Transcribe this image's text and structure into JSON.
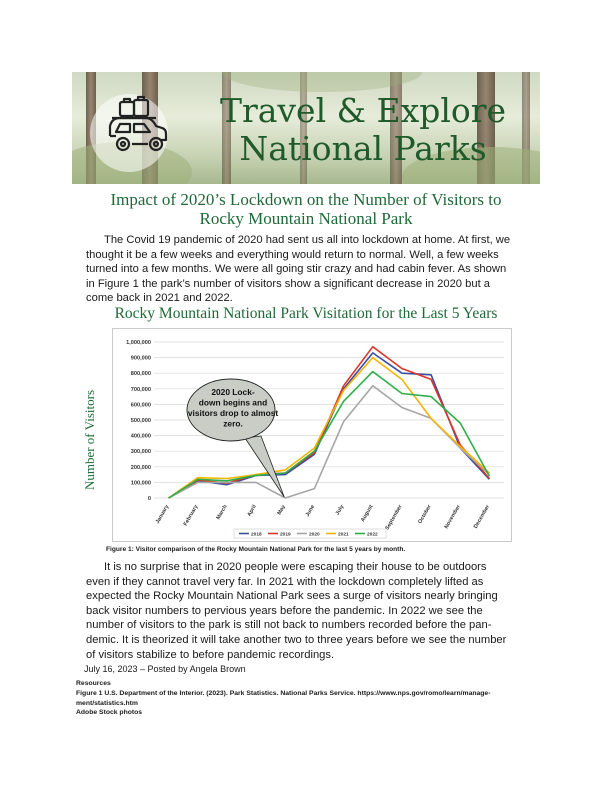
{
  "banner": {
    "title_line1": "Travel & Explore",
    "title_line2": "National Parks"
  },
  "article": {
    "title_line1": "Impact of 2020’s Lockdown on the Number of Visitors to",
    "title_line2": "Rocky Mountain National Park",
    "para1_lines": [
      "The Covid 19 pandemic of 2020 had sent us all into lockdown at home. At first, we",
      "thought it be a few weeks and everything would return to normal.  Well, a few weeks",
      "turned into a few months. We were all going stir crazy and had cabin fever. As shown",
      "in Figure 1 the park’s number of visitors show a significant decrease in 2020 but a",
      "come back in 2021 and 2022."
    ],
    "para2_lines": [
      "It is no surprise that in 2020 people were escaping their house to be outdoors",
      "even if they cannot travel very far. In 2021 with the lockdown completely lifted as",
      "expected the Rocky Mountain National Park sees a surge of visitors nearly bringing",
      "back visitor numbers to pervious years before the pandemic.  In 2022 we see the",
      "number of visitors to the park is still not back to numbers recorded before the pan-",
      "demic. It is theorized it will take another two to three years before we see the number",
      "of visitors stabilize to before pandemic recordings."
    ],
    "byline": "July 16, 2023 – Posted by Angela Brown",
    "resources_heading": "Resources",
    "resources_lines": [
      "Figure 1 U.S. Department of the Interior. (2023). Park Statistics. National Parks Service. https://www.nps.gov/romo/learn/manage-",
      "ment/statistics.htm",
      "Adobe Stock photos"
    ]
  },
  "figure": {
    "caption": "Figure 1: Visitor comparison of the Rocky Mountain National Park for the last 5 years by month."
  },
  "chart_data": {
    "type": "line",
    "title": "Rocky Mountain National Park Visitation for the Last 5 Years",
    "ylabel": "Number of Visitors",
    "xlabel": "",
    "ylim": [
      0,
      1000000
    ],
    "yticks": [
      "0",
      "100,000",
      "200,000",
      "300,000",
      "400,000",
      "500,000",
      "600,000",
      "700,000",
      "800,000",
      "900,000",
      "1,000,000"
    ],
    "grid": true,
    "legend_position": "bottom",
    "categories": [
      "January",
      "February",
      "March",
      "April",
      "May",
      "June",
      "July",
      "August",
      "September",
      "October",
      "November",
      "December"
    ],
    "series": [
      {
        "name": "2018",
        "color": "#3b4fa0",
        "values": [
          0,
          110000,
          85000,
          145000,
          150000,
          280000,
          700000,
          930000,
          800000,
          790000,
          320000,
          120000
        ]
      },
      {
        "name": "2019",
        "color": "#d9362b",
        "values": [
          0,
          115000,
          95000,
          150000,
          160000,
          290000,
          720000,
          970000,
          830000,
          760000,
          340000,
          125000
        ]
      },
      {
        "name": "2020",
        "color": "#a6a6a6",
        "values": [
          0,
          100000,
          100000,
          100000,
          0,
          60000,
          490000,
          720000,
          580000,
          510000,
          320000,
          150000
        ]
      },
      {
        "name": "2021",
        "color": "#f4b400",
        "values": [
          0,
          130000,
          125000,
          150000,
          180000,
          320000,
          690000,
          900000,
          760000,
          510000,
          330000,
          160000
        ]
      },
      {
        "name": "2022",
        "color": "#2fae4a",
        "values": [
          0,
          120000,
          110000,
          145000,
          160000,
          300000,
          620000,
          810000,
          670000,
          650000,
          480000,
          140000
        ]
      }
    ],
    "annotation": "2020 Lock-down begins and visitors drop to almost zero.",
    "annotation_lines": [
      "2020 Lock-",
      "down begins and",
      "visitors drop to almost",
      "zero."
    ]
  },
  "colors": {
    "heading_green": "#1f6a38",
    "bubble_fill": "#c9cdc6"
  }
}
